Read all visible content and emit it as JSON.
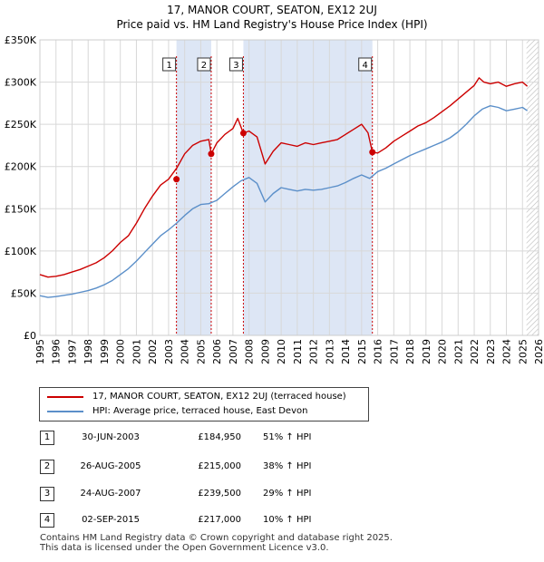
{
  "title_line1": "17, MANOR COURT, SEATON, EX12 2UJ",
  "title_line2": "Price paid vs. HM Land Registry's House Price Index (HPI)",
  "chart_data": {
    "type": "line",
    "title": "Price paid vs. HM Land Registry's House Price Index (HPI)",
    "xlabel": "",
    "ylabel": "",
    "xlim": [
      1995,
      2026
    ],
    "ylim": [
      0,
      350000
    ],
    "y_ticks": [
      0,
      50000,
      100000,
      150000,
      200000,
      250000,
      300000,
      350000
    ],
    "y_tick_labels": [
      "£0",
      "£50K",
      "£100K",
      "£150K",
      "£200K",
      "£250K",
      "£300K",
      "£350K"
    ],
    "x_ticks": [
      1995,
      1996,
      1997,
      1998,
      1999,
      2000,
      2001,
      2002,
      2003,
      2004,
      2005,
      2006,
      2007,
      2008,
      2009,
      2010,
      2011,
      2012,
      2013,
      2014,
      2015,
      2016,
      2017,
      2018,
      2019,
      2020,
      2021,
      2022,
      2023,
      2024,
      2025,
      2026
    ],
    "x_tick_labels": [
      "1995",
      "1996",
      "1997",
      "1998",
      "1999",
      "2000",
      "2001",
      "2002",
      "2003",
      "2004",
      "2005",
      "2006",
      "2007",
      "2008",
      "2009",
      "2010",
      "2011",
      "2012",
      "2013",
      "2014",
      "2015",
      "2016",
      "2017",
      "2018",
      "2019",
      "2020",
      "2021",
      "2022",
      "2023",
      "2024",
      "2025",
      "2026"
    ],
    "grid": true,
    "series": [
      {
        "name": "17, MANOR COURT, SEATON, EX12 2UJ (terraced house)",
        "color": "#cc0000",
        "x": [
          1995.0,
          1995.5,
          1996.0,
          1996.5,
          1997.0,
          1997.5,
          1998.0,
          1998.5,
          1999.0,
          1999.5,
          2000.0,
          2000.5,
          2001.0,
          2001.5,
          2002.0,
          2002.5,
          2003.0,
          2003.5,
          2004.0,
          2004.5,
          2005.0,
          2005.5,
          2005.65,
          2006.0,
          2006.5,
          2007.0,
          2007.3,
          2007.65,
          2008.0,
          2008.5,
          2009.0,
          2009.5,
          2010.0,
          2010.5,
          2011.0,
          2011.5,
          2012.0,
          2012.5,
          2013.0,
          2013.5,
          2014.0,
          2014.5,
          2015.0,
          2015.4,
          2015.67,
          2016.0,
          2016.5,
          2017.0,
          2017.5,
          2018.0,
          2018.5,
          2019.0,
          2019.5,
          2020.0,
          2020.5,
          2021.0,
          2021.5,
          2022.0,
          2022.3,
          2022.6,
          2023.0,
          2023.5,
          2024.0,
          2024.5,
          2025.0,
          2025.3
        ],
        "values": [
          72000,
          69000,
          70000,
          72000,
          75000,
          78000,
          82000,
          86000,
          92000,
          100000,
          110000,
          118000,
          133000,
          150000,
          165000,
          178000,
          184950,
          198000,
          215000,
          225000,
          230000,
          232000,
          215000,
          228000,
          238000,
          245000,
          257000,
          239500,
          242000,
          235000,
          203000,
          218000,
          228000,
          226000,
          224000,
          228000,
          226000,
          228000,
          230000,
          232000,
          238000,
          244000,
          250000,
          240000,
          217000,
          216000,
          222000,
          230000,
          236000,
          242000,
          248000,
          252000,
          258000,
          265000,
          272000,
          280000,
          288000,
          296000,
          305000,
          300000,
          298000,
          300000,
          295000,
          298000,
          300000,
          295000
        ]
      },
      {
        "name": "HPI: Average price, terraced house, East Devon",
        "color": "#5b8fc9",
        "x": [
          1995.0,
          1995.5,
          1996.0,
          1996.5,
          1997.0,
          1997.5,
          1998.0,
          1998.5,
          1999.0,
          1999.5,
          2000.0,
          2000.5,
          2001.0,
          2001.5,
          2002.0,
          2002.5,
          2003.0,
          2003.5,
          2004.0,
          2004.5,
          2005.0,
          2005.5,
          2006.0,
          2006.5,
          2007.0,
          2007.5,
          2008.0,
          2008.5,
          2009.0,
          2009.5,
          2010.0,
          2010.5,
          2011.0,
          2011.5,
          2012.0,
          2012.5,
          2013.0,
          2013.5,
          2014.0,
          2014.5,
          2015.0,
          2015.5,
          2016.0,
          2016.5,
          2017.0,
          2017.5,
          2018.0,
          2018.5,
          2019.0,
          2019.5,
          2020.0,
          2020.5,
          2021.0,
          2021.5,
          2022.0,
          2022.5,
          2023.0,
          2023.5,
          2024.0,
          2024.5,
          2025.0,
          2025.3
        ],
        "values": [
          47000,
          45000,
          46000,
          47500,
          49000,
          51000,
          53000,
          56000,
          60000,
          65000,
          72000,
          79000,
          88000,
          98000,
          108000,
          118000,
          125000,
          133000,
          142000,
          150000,
          155000,
          156000,
          160000,
          168000,
          176000,
          183000,
          187000,
          180000,
          158000,
          168000,
          175000,
          173000,
          171000,
          173000,
          172000,
          173000,
          175000,
          177000,
          181000,
          186000,
          190000,
          186000,
          194000,
          198000,
          203000,
          208000,
          213000,
          217000,
          221000,
          225000,
          229000,
          234000,
          241000,
          250000,
          260000,
          268000,
          272000,
          270000,
          266000,
          268000,
          270000,
          266000
        ]
      }
    ],
    "sales": [
      {
        "id": "1",
        "date": "30-JUN-2003",
        "x": 2003.49,
        "price": 184950,
        "price_label": "£184,950",
        "hpi_label": "51% ↑ HPI"
      },
      {
        "id": "2",
        "date": "26-AUG-2005",
        "x": 2005.65,
        "price": 215000,
        "price_label": "£215,000",
        "hpi_label": "38% ↑ HPI"
      },
      {
        "id": "3",
        "date": "24-AUG-2007",
        "x": 2007.65,
        "price": 239500,
        "price_label": "£239,500",
        "hpi_label": "29% ↑ HPI"
      },
      {
        "id": "4",
        "date": "02-SEP-2015",
        "x": 2015.67,
        "price": 217000,
        "price_label": "£217,000",
        "hpi_label": "10% ↑ HPI"
      }
    ],
    "shaded_ranges": [
      [
        2003.49,
        2005.65
      ],
      [
        2007.65,
        2015.67
      ]
    ],
    "hatched_from": 2025.25
  },
  "colors": {
    "property": "#cc0000",
    "hpi": "#5b8fc9",
    "shade": "#dde6f5",
    "grid": "#d8d8d8",
    "marker_line": "#cc0000"
  },
  "legend": {
    "property_label": "17, MANOR COURT, SEATON, EX12 2UJ (terraced house)",
    "hpi_label": "HPI: Average price, terraced house, East Devon"
  },
  "footer_line1": "Contains HM Land Registry data © Crown copyright and database right 2025.",
  "footer_line2": "This data is licensed under the Open Government Licence v3.0."
}
